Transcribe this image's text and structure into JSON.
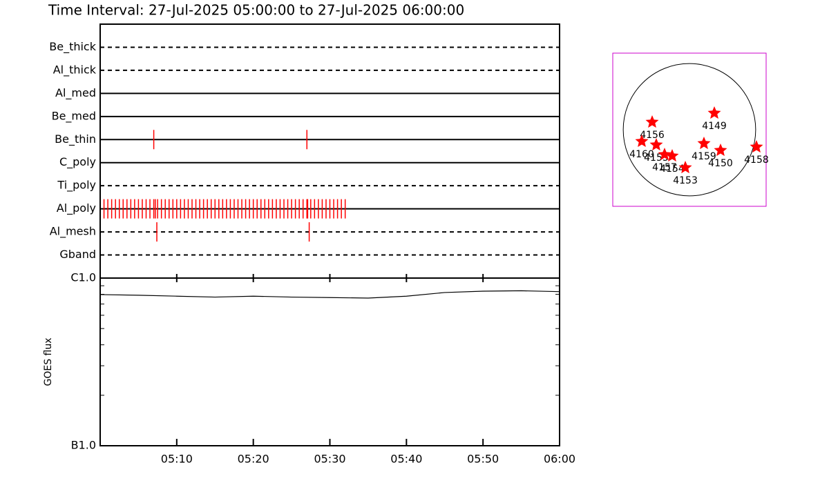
{
  "chart_data": {
    "type": "observation-timeline",
    "title": "Time Interval: 27-Jul-2025 05:00:00 to 27-Jul-2025 06:00:00",
    "color": "#ff0000",
    "xlim": [
      0,
      60
    ],
    "xticks": [
      {
        "value": 10,
        "label": "05:10"
      },
      {
        "value": 20,
        "label": "05:20"
      },
      {
        "value": 30,
        "label": "05:30"
      },
      {
        "value": 40,
        "label": "05:40"
      },
      {
        "value": 50,
        "label": "05:50"
      },
      {
        "value": 60,
        "label": "06:00"
      }
    ],
    "filters": [
      {
        "name": "Be_thick",
        "line": "dashed",
        "times": []
      },
      {
        "name": "Al_thick",
        "line": "dashed",
        "times": []
      },
      {
        "name": "Al_med",
        "line": "solid",
        "times": []
      },
      {
        "name": "Be_med",
        "line": "solid",
        "times": []
      },
      {
        "name": "Be_thin",
        "line": "solid",
        "times": [
          7.0,
          27.0
        ]
      },
      {
        "name": "C_poly",
        "line": "solid",
        "times": []
      },
      {
        "name": "Ti_poly",
        "line": "dashed",
        "times": []
      },
      {
        "name": "Al_poly",
        "line": "solid",
        "times": [
          0,
          0.5,
          1,
          1.5,
          2,
          2.5,
          3,
          3.5,
          4,
          4.5,
          5,
          5.5,
          6,
          6.5,
          7,
          7.2,
          7.5,
          8,
          8.5,
          9,
          9.5,
          10,
          10.5,
          11,
          11.5,
          12,
          12.5,
          13,
          13.5,
          14,
          14.5,
          15,
          15.5,
          16,
          16.5,
          17,
          17.5,
          18,
          18.5,
          19,
          19.5,
          20,
          20.5,
          21,
          21.5,
          22,
          22.5,
          23,
          23.5,
          24,
          24.5,
          25,
          25.5,
          26,
          26.5,
          27,
          27.1,
          27.5,
          28,
          28.5,
          29,
          29.5,
          30,
          30.5,
          31,
          31.5,
          32
        ]
      },
      {
        "name": "Al_mesh",
        "line": "dashed",
        "times": [
          7.4,
          27.3
        ]
      },
      {
        "name": "Gband",
        "line": "dashed",
        "times": []
      }
    ],
    "goes": {
      "ylabel": "GOES flux",
      "log_scale": true,
      "ylim": [
        1e-07,
        1e-06
      ],
      "yticks": [
        {
          "value": 1e-07,
          "label": "B1.0"
        },
        {
          "value": 1e-06,
          "label": "C1.0"
        }
      ],
      "yminorticks": [
        2e-07,
        3e-07,
        4e-07,
        5e-07,
        6e-07,
        7e-07,
        8e-07,
        9e-07
      ],
      "x": [
        0,
        5,
        10,
        15,
        20,
        25,
        30,
        35,
        40,
        45,
        50,
        55,
        60
      ],
      "values": [
        7.97e-07,
        7.9e-07,
        7.8e-07,
        7.7e-07,
        7.8e-07,
        7.7e-07,
        7.65e-07,
        7.6e-07,
        7.8e-07,
        8.2e-07,
        8.35e-07,
        8.4e-07,
        8.3e-07
      ]
    },
    "map": {
      "xlim": [
        -1100,
        1100
      ],
      "ylim": [
        -1100,
        1100
      ],
      "solar_radius": 950,
      "frame_color": "#cc00cc",
      "regions": [
        {
          "label": "4156",
          "x": -535,
          "y": 109
        },
        {
          "label": "4149",
          "x": 357,
          "y": 238
        },
        {
          "label": "4160",
          "x": -684,
          "y": -168
        },
        {
          "label": "4155",
          "x": -476,
          "y": -218
        },
        {
          "label": "4157",
          "x": -357,
          "y": -357
        },
        {
          "label": "4154",
          "x": -248,
          "y": -377
        },
        {
          "label": "4153",
          "x": -59,
          "y": -545
        },
        {
          "label": "4159",
          "x": 208,
          "y": -198
        },
        {
          "label": "4150",
          "x": 446,
          "y": -297
        },
        {
          "label": "4158",
          "x": 961,
          "y": -248
        }
      ]
    }
  }
}
